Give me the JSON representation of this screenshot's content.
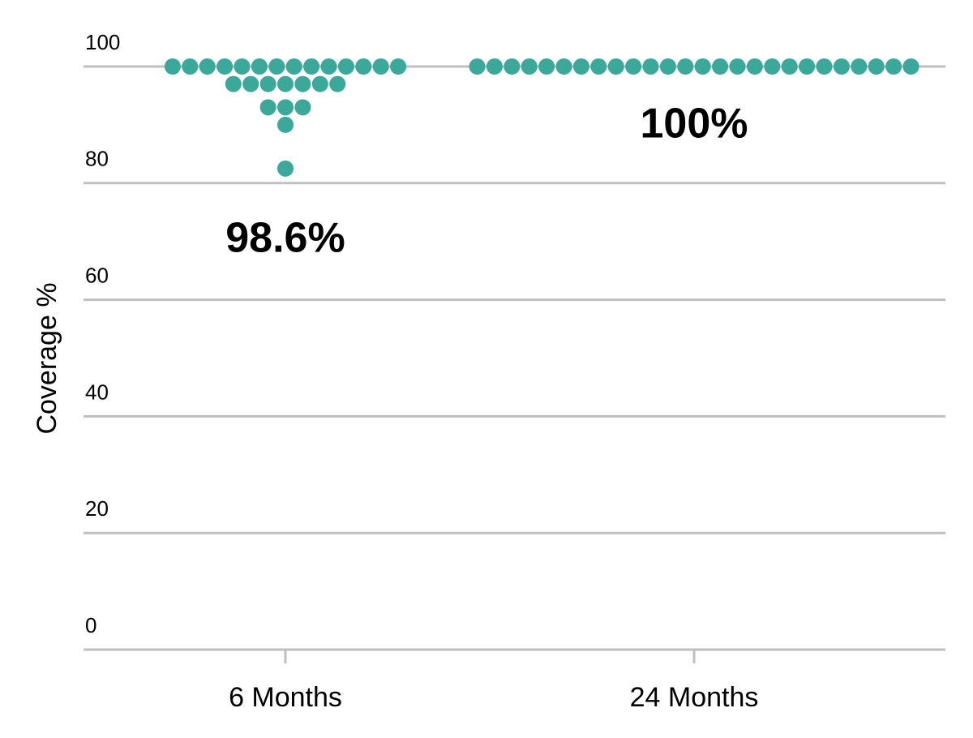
{
  "chart_data": {
    "type": "beeswarm",
    "ylabel": "Coverage %",
    "color": "#3aa99a",
    "ylim": [
      0,
      100
    ],
    "yticks": [
      0,
      20,
      40,
      60,
      80,
      100
    ],
    "grid": true,
    "groups": [
      {
        "label": "6 Months",
        "annotation": "98.6%",
        "values": [
          100,
          100,
          100,
          100,
          100,
          100,
          100,
          100,
          100,
          100,
          100,
          100,
          100,
          100,
          97,
          97,
          97,
          97,
          97,
          97,
          97,
          93,
          93,
          93,
          90,
          82.5
        ]
      },
      {
        "label": "24 Months",
        "annotation": "100%",
        "values": [
          100,
          100,
          100,
          100,
          100,
          100,
          100,
          100,
          100,
          100,
          100,
          100,
          100,
          100,
          100,
          100,
          100,
          100,
          100,
          100,
          100,
          100,
          100,
          100,
          100,
          100
        ]
      }
    ]
  }
}
